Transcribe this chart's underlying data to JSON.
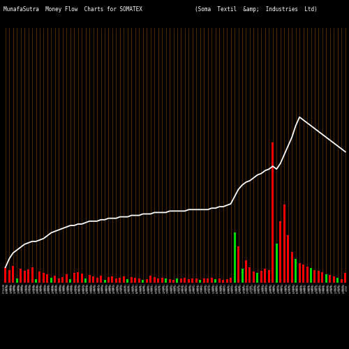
{
  "title_left": "MunafaSutra  Money Flow  Charts for SOMATEX",
  "title_right": "(Soma  Textil  &amp;  Industries  Ltd)",
  "bg_color": "#000000",
  "grid_color": "#8B4500",
  "line_color": "#ffffff",
  "bar_color_red": "#ff0000",
  "bar_color_green": "#00dd00",
  "n_bars": 90,
  "bar_colors": [
    "red",
    "red",
    "red",
    "green",
    "red",
    "red",
    "red",
    "red",
    "green",
    "red",
    "red",
    "red",
    "green",
    "red",
    "red",
    "red",
    "red",
    "green",
    "red",
    "red",
    "red",
    "green",
    "red",
    "red",
    "red",
    "red",
    "green",
    "red",
    "red",
    "red",
    "red",
    "red",
    "green",
    "red",
    "red",
    "red",
    "green",
    "red",
    "red",
    "red",
    "red",
    "red",
    "green",
    "red",
    "red",
    "green",
    "red",
    "red",
    "red",
    "red",
    "red",
    "green",
    "red",
    "red",
    "red",
    "green",
    "red",
    "red",
    "red",
    "red",
    "green",
    "red",
    "green",
    "red",
    "red",
    "red",
    "green",
    "red",
    "red",
    "red",
    "red",
    "green",
    "red",
    "red",
    "red",
    "red",
    "green",
    "red",
    "red",
    "red",
    "green",
    "red",
    "red",
    "red",
    "green",
    "red",
    "red",
    "green",
    "red",
    "red"
  ],
  "bar_heights": [
    55,
    45,
    60,
    15,
    50,
    42,
    48,
    55,
    12,
    40,
    35,
    30,
    18,
    25,
    15,
    20,
    30,
    12,
    35,
    38,
    32,
    14,
    28,
    22,
    18,
    25,
    10,
    20,
    22,
    15,
    18,
    22,
    12,
    20,
    18,
    14,
    10,
    12,
    25,
    20,
    16,
    18,
    14,
    12,
    10,
    14,
    16,
    18,
    12,
    16,
    14,
    10,
    14,
    16,
    18,
    12,
    14,
    10,
    12,
    18,
    180,
    130,
    50,
    80,
    55,
    40,
    35,
    42,
    50,
    45,
    500,
    140,
    220,
    280,
    170,
    110,
    85,
    70,
    65,
    58,
    52,
    45,
    42,
    38,
    30,
    28,
    22,
    18,
    12,
    35
  ],
  "line_values": [
    8,
    14,
    18,
    20,
    22,
    24,
    25,
    26,
    26,
    27,
    28,
    30,
    32,
    33,
    34,
    35,
    36,
    37,
    37,
    38,
    38,
    39,
    40,
    40,
    40,
    41,
    41,
    42,
    42,
    42,
    43,
    43,
    43,
    44,
    44,
    44,
    45,
    45,
    45,
    46,
    46,
    46,
    46,
    47,
    47,
    47,
    47,
    47,
    48,
    48,
    48,
    48,
    48,
    48,
    49,
    49,
    50,
    50,
    51,
    52,
    57,
    62,
    65,
    67,
    68,
    70,
    72,
    73,
    75,
    76,
    78,
    76,
    80,
    86,
    92,
    98,
    106,
    112,
    110,
    108,
    106,
    104,
    102,
    100,
    98,
    96,
    94,
    92,
    90,
    88
  ],
  "figsize": [
    5.0,
    5.0
  ],
  "dpi": 100
}
